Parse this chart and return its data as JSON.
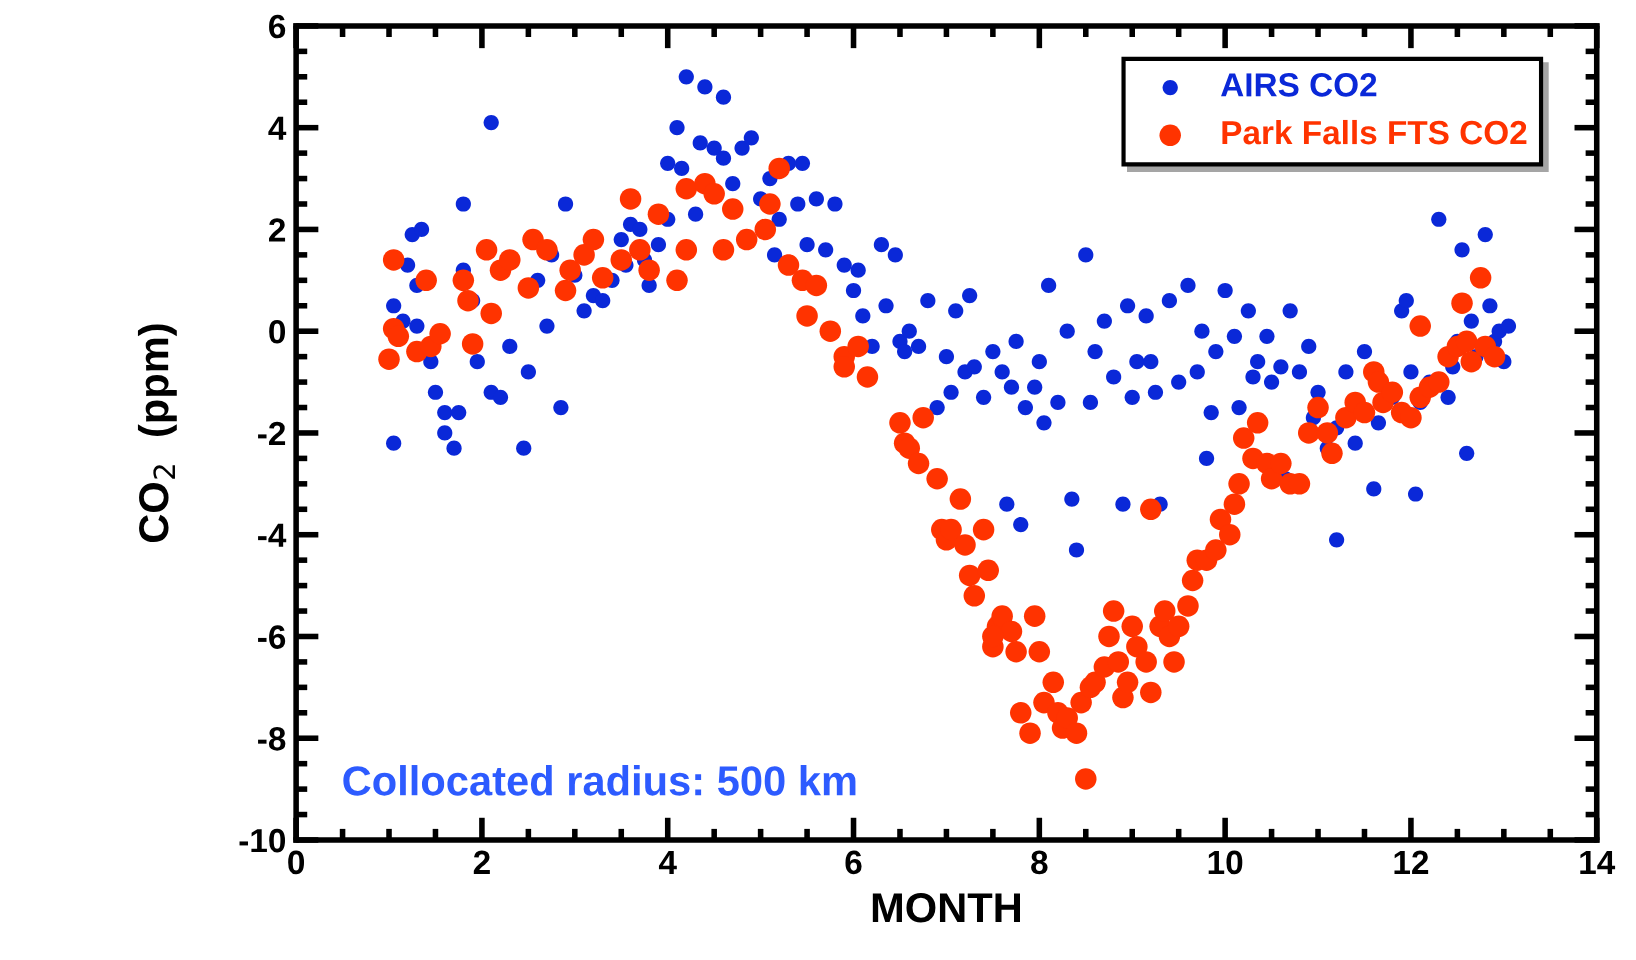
{
  "chart_data": {
    "type": "scatter",
    "xlabel": "MONTH",
    "ylabel": "CO$_{2}$  (ppm)",
    "xlim": [
      0,
      14
    ],
    "xticks": [
      0,
      2,
      4,
      6,
      8,
      10,
      12,
      14
    ],
    "ylim": [
      -10,
      6
    ],
    "yticks": [
      -10,
      -8,
      -6,
      -4,
      -2,
      0,
      2,
      4,
      6
    ],
    "grid": false,
    "legend": "top right",
    "marker": "circle",
    "annotations": [
      "Collocated radius: 500 km"
    ],
    "series": [
      {
        "name": "AIRS CO2",
        "color": "#0a28d8",
        "x": [
          1.05,
          1.05,
          1.2,
          1.25,
          1.35,
          1.3,
          1.15,
          1.3,
          1.45,
          1.5,
          1.6,
          1.6,
          1.7,
          1.75,
          1.8,
          1.8,
          1.9,
          1.95,
          2.1,
          2.1,
          2.2,
          2.3,
          2.45,
          2.5,
          2.6,
          2.7,
          2.75,
          2.85,
          2.9,
          3.0,
          3.1,
          3.2,
          3.3,
          3.4,
          3.5,
          3.55,
          3.6,
          3.7,
          3.75,
          3.8,
          3.9,
          4.0,
          4.0,
          4.1,
          4.15,
          4.2,
          4.3,
          4.35,
          4.4,
          4.5,
          4.6,
          4.6,
          4.7,
          4.8,
          4.9,
          5.0,
          5.1,
          5.15,
          5.2,
          5.3,
          5.4,
          5.45,
          5.5,
          5.6,
          5.7,
          5.8,
          5.9,
          6.0,
          6.05,
          6.1,
          6.2,
          6.3,
          6.35,
          6.45,
          6.5,
          6.55,
          6.6,
          6.7,
          6.8,
          6.9,
          7.0,
          7.05,
          7.1,
          7.2,
          7.25,
          7.3,
          7.4,
          7.5,
          7.6,
          7.65,
          7.7,
          7.75,
          7.8,
          7.85,
          7.95,
          8.0,
          8.05,
          8.1,
          8.2,
          8.3,
          8.35,
          8.4,
          8.5,
          8.55,
          8.6,
          8.7,
          8.8,
          8.9,
          8.95,
          9.0,
          9.05,
          9.15,
          9.2,
          9.25,
          9.3,
          9.4,
          9.5,
          9.6,
          9.7,
          9.75,
          9.85,
          9.9,
          10.0,
          10.1,
          10.15,
          10.25,
          10.3,
          10.35,
          10.45,
          10.5,
          10.6,
          10.65,
          10.7,
          10.8,
          10.9,
          10.95,
          11.0,
          11.1,
          11.2,
          11.3,
          11.4,
          11.5,
          11.6,
          11.65,
          11.8,
          11.9,
          12.0,
          12.05,
          12.1,
          12.2,
          12.3,
          12.4,
          12.45,
          12.55,
          12.6,
          12.65,
          12.7,
          12.8,
          12.85,
          12.9,
          12.95,
          13.0,
          13.05,
          11.95,
          12.5,
          11.2,
          9.8
        ],
        "values": [
          -2.2,
          0.5,
          1.3,
          1.9,
          2.0,
          0.9,
          0.2,
          0.1,
          -0.6,
          -1.2,
          -1.6,
          -2.0,
          -2.3,
          -1.6,
          2.5,
          1.2,
          0.6,
          -0.6,
          4.1,
          -1.2,
          -1.3,
          -0.3,
          -2.3,
          -0.8,
          1.0,
          0.1,
          1.5,
          -1.5,
          2.5,
          1.1,
          0.4,
          0.7,
          0.6,
          1.0,
          1.8,
          1.3,
          2.1,
          2.0,
          1.4,
          0.9,
          1.7,
          3.3,
          2.2,
          4.0,
          3.2,
          5.0,
          2.3,
          3.7,
          4.8,
          3.6,
          4.6,
          3.4,
          2.9,
          3.6,
          3.8,
          2.6,
          3.0,
          1.5,
          2.2,
          3.3,
          2.5,
          3.3,
          1.7,
          2.6,
          1.6,
          2.5,
          1.3,
          0.8,
          1.2,
          0.3,
          -0.3,
          1.7,
          0.5,
          1.5,
          -0.2,
          -0.4,
          0.0,
          -0.3,
          0.6,
          -1.5,
          -0.5,
          -1.2,
          0.4,
          -0.8,
          0.7,
          -0.7,
          -1.3,
          -0.4,
          -0.8,
          -3.4,
          -1.1,
          -0.2,
          -3.8,
          -1.5,
          -1.1,
          -0.6,
          -1.8,
          0.9,
          -1.4,
          0.0,
          -3.3,
          -4.3,
          1.5,
          -1.4,
          -0.4,
          0.2,
          -0.9,
          -3.4,
          0.5,
          -1.3,
          -0.6,
          0.3,
          -0.6,
          -1.2,
          -3.4,
          0.6,
          -1.0,
          0.9,
          -0.8,
          0.0,
          -1.6,
          -0.4,
          0.8,
          -0.1,
          -1.5,
          0.4,
          -0.9,
          -0.6,
          -0.1,
          -1.0,
          -0.7,
          -2.9,
          0.4,
          -0.8,
          -0.3,
          -1.7,
          -1.2,
          -2.3,
          -1.9,
          -0.8,
          -2.2,
          -0.4,
          -3.1,
          -1.8,
          -1.3,
          0.4,
          -0.8,
          -3.2,
          -1.4,
          -1.0,
          2.2,
          -1.3,
          -0.7,
          1.6,
          -2.4,
          0.2,
          -0.5,
          1.9,
          0.5,
          -0.2,
          0.0,
          -0.6,
          0.1,
          0.6,
          -0.2,
          -4.1,
          -2.5
        ]
      },
      {
        "name": "Park Falls FTS CO2",
        "color": "#ff3300",
        "x": [
          1.05,
          1.05,
          1.0,
          1.1,
          1.3,
          1.4,
          1.45,
          1.55,
          1.8,
          1.85,
          1.9,
          2.05,
          2.1,
          2.2,
          2.3,
          2.5,
          2.55,
          2.7,
          2.9,
          2.95,
          3.1,
          3.2,
          3.3,
          3.5,
          3.6,
          3.7,
          3.8,
          3.9,
          4.1,
          4.2,
          4.2,
          4.4,
          4.5,
          4.6,
          4.7,
          4.85,
          5.05,
          5.1,
          5.2,
          5.3,
          5.45,
          5.6,
          5.5,
          5.75,
          5.9,
          5.9,
          6.05,
          6.15,
          6.5,
          6.55,
          6.6,
          6.7,
          6.75,
          6.9,
          6.95,
          7.0,
          7.05,
          7.15,
          7.2,
          7.25,
          7.3,
          7.4,
          7.45,
          7.5,
          7.55,
          7.6,
          7.7,
          7.75,
          7.5,
          7.95,
          8.0,
          7.8,
          7.9,
          8.05,
          8.15,
          8.2,
          8.25,
          8.3,
          8.4,
          8.45,
          8.5,
          8.55,
          8.6,
          8.7,
          8.75,
          8.8,
          8.85,
          8.9,
          8.95,
          9.0,
          9.05,
          9.15,
          9.2,
          9.3,
          9.35,
          9.4,
          9.45,
          9.5,
          9.6,
          9.65,
          9.7,
          9.8,
          9.9,
          9.95,
          10.05,
          10.1,
          10.15,
          10.2,
          10.3,
          10.35,
          10.45,
          10.5,
          10.6,
          10.7,
          10.8,
          10.9,
          11.0,
          11.1,
          11.15,
          11.3,
          11.4,
          11.5,
          11.6,
          11.65,
          11.7,
          11.8,
          11.9,
          12.1,
          12.1,
          12.2,
          12.3,
          12.4,
          12.5,
          12.55,
          12.6,
          12.65,
          12.75,
          12.8,
          12.9,
          12.0,
          9.2
        ],
        "values": [
          1.4,
          0.05,
          -0.55,
          -0.1,
          -0.4,
          1.0,
          -0.3,
          -0.05,
          1.0,
          0.6,
          -0.25,
          1.6,
          0.35,
          1.2,
          1.4,
          0.85,
          1.8,
          1.6,
          0.8,
          1.2,
          1.5,
          1.8,
          1.05,
          1.4,
          2.6,
          1.6,
          1.2,
          2.3,
          1.0,
          1.6,
          2.8,
          2.9,
          2.7,
          1.6,
          2.4,
          1.8,
          2.0,
          2.5,
          3.2,
          1.3,
          1.0,
          0.9,
          0.3,
          0.0,
          -0.5,
          -0.7,
          -0.3,
          -0.9,
          -1.8,
          -2.2,
          -2.3,
          -2.6,
          -1.7,
          -2.9,
          -3.9,
          -4.1,
          -3.9,
          -3.3,
          -4.2,
          -4.8,
          -5.2,
          -3.9,
          -4.7,
          -6.2,
          -5.8,
          -5.6,
          -5.9,
          -6.3,
          -6.0,
          -5.6,
          -6.3,
          -7.5,
          -7.9,
          -7.3,
          -6.9,
          -7.5,
          -7.8,
          -7.6,
          -7.9,
          -7.3,
          -8.8,
          -7.0,
          -6.9,
          -6.6,
          -6.0,
          -5.5,
          -6.5,
          -7.2,
          -6.9,
          -5.8,
          -6.2,
          -6.5,
          -7.1,
          -5.8,
          -5.5,
          -6.0,
          -6.5,
          -5.8,
          -5.4,
          -4.9,
          -4.5,
          -4.5,
          -4.3,
          -3.7,
          -4.0,
          -3.4,
          -3.0,
          -2.1,
          -2.5,
          -1.8,
          -2.6,
          -2.9,
          -2.6,
          -3.0,
          -3.0,
          -2.0,
          -1.5,
          -2.0,
          -2.4,
          -1.7,
          -1.4,
          -1.6,
          -0.8,
          -1.0,
          -1.4,
          -1.2,
          -1.6,
          -1.3,
          0.1,
          -1.1,
          -1.0,
          -0.5,
          -0.3,
          0.55,
          -0.2,
          -0.6,
          1.05,
          -0.3,
          -0.5,
          -1.7,
          -3.5
        ]
      }
    ]
  }
}
